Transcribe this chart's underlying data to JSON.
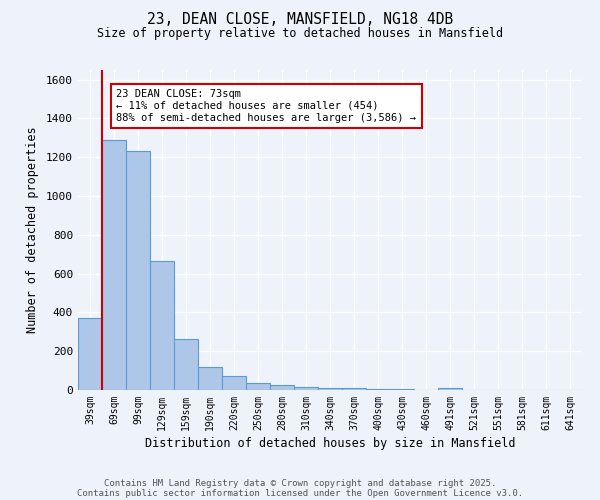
{
  "title1": "23, DEAN CLOSE, MANSFIELD, NG18 4DB",
  "title2": "Size of property relative to detached houses in Mansfield",
  "xlabel": "Distribution of detached houses by size in Mansfield",
  "ylabel": "Number of detached properties",
  "categories": [
    "39sqm",
    "69sqm",
    "99sqm",
    "129sqm",
    "159sqm",
    "190sqm",
    "220sqm",
    "250sqm",
    "280sqm",
    "310sqm",
    "340sqm",
    "370sqm",
    "400sqm",
    "430sqm",
    "460sqm",
    "491sqm",
    "521sqm",
    "551sqm",
    "581sqm",
    "611sqm",
    "641sqm"
  ],
  "values": [
    370,
    1290,
    1230,
    665,
    265,
    120,
    70,
    38,
    28,
    18,
    10,
    8,
    5,
    3,
    2,
    12,
    0,
    0,
    0,
    0,
    0
  ],
  "bar_color": "#aec6e8",
  "bar_edge_color": "#5b9bd5",
  "red_line_x": 0.5,
  "ylim": [
    0,
    1650
  ],
  "yticks": [
    0,
    200,
    400,
    600,
    800,
    1000,
    1200,
    1400,
    1600
  ],
  "annotation_text": "23 DEAN CLOSE: 73sqm\n← 11% of detached houses are smaller (454)\n88% of semi-detached houses are larger (3,586) →",
  "annotation_box_color": "#ffffff",
  "annotation_box_edge": "#cc0000",
  "footer1": "Contains HM Land Registry data © Crown copyright and database right 2025.",
  "footer2": "Contains public sector information licensed under the Open Government Licence v3.0.",
  "background_color": "#eef2fb",
  "plot_bg_color": "#eef2fb",
  "grid_color": "#ffffff"
}
